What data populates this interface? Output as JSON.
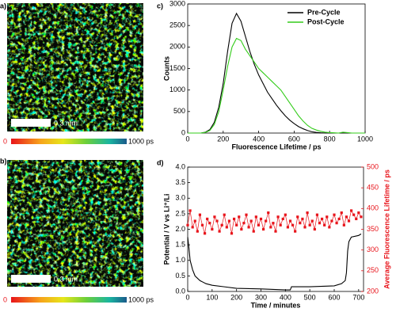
{
  "panels": {
    "a": {
      "label": "a)",
      "scale_bar": "0.3 mm",
      "colorbar": [
        "0",
        "1000 ps"
      ]
    },
    "b": {
      "label": "b)",
      "scale_bar": "0.3 mm",
      "colorbar": [
        "0",
        "1000 ps"
      ]
    }
  },
  "chart_data": [
    {
      "type": "line",
      "label": "c)",
      "xlabel": "Fluorescence Lifetime / ps",
      "ylabel": "Counts",
      "x": [
        0,
        25,
        50,
        75,
        100,
        125,
        150,
        175,
        200,
        225,
        250,
        275,
        300,
        325,
        350,
        375,
        400,
        425,
        450,
        475,
        500,
        525,
        550,
        575,
        600,
        625,
        650,
        675,
        700,
        725,
        750,
        775,
        800,
        825,
        850,
        875,
        900,
        925,
        950,
        975,
        1000
      ],
      "series": [
        {
          "name": "Pre-Cycle",
          "color": "#000000",
          "values": [
            0,
            0,
            0,
            0,
            20,
            80,
            250,
            600,
            1150,
            1900,
            2550,
            2780,
            2600,
            2250,
            1900,
            1600,
            1350,
            1150,
            950,
            800,
            650,
            520,
            400,
            300,
            220,
            150,
            100,
            60,
            30,
            15,
            5,
            0,
            0,
            0,
            0,
            0,
            0,
            0,
            0,
            0,
            0
          ]
        },
        {
          "name": "Post-Cycle",
          "color": "#33cc1a",
          "values": [
            0,
            0,
            0,
            0,
            15,
            60,
            200,
            500,
            1000,
            1550,
            2000,
            2200,
            2150,
            1950,
            1800,
            1650,
            1500,
            1400,
            1300,
            1200,
            1100,
            1000,
            850,
            700,
            550,
            400,
            280,
            180,
            110,
            70,
            40,
            20,
            10,
            5,
            0,
            20,
            10,
            0,
            0,
            0,
            0
          ]
        }
      ],
      "xlim": [
        0,
        1000
      ],
      "xticks": [
        0,
        200,
        400,
        600,
        800,
        1000
      ],
      "ylim": [
        0,
        3000
      ],
      "yticks": [
        0,
        500,
        1000,
        1500,
        2000,
        2500,
        3000
      ],
      "legend": "upper-right"
    },
    {
      "type": "line",
      "label": "d)",
      "xlabel": "Time / minutes",
      "ylabel": "Potential / V vs Li⁺/Li",
      "y2label": "Average Fluorescence Lifetime / ps",
      "y2color": "#e8141b",
      "series": [
        {
          "color": "#000000",
          "x": [
            0,
            5,
            10,
            20,
            30,
            50,
            75,
            100,
            150,
            200,
            300,
            400,
            420,
            425,
            500,
            600,
            630,
            645,
            650,
            655,
            660,
            670,
            700,
            710
          ],
          "values": [
            1.75,
            1.4,
            1.0,
            0.7,
            0.5,
            0.35,
            0.25,
            0.2,
            0.15,
            0.1,
            0.08,
            0.05,
            0.05,
            0.15,
            0.15,
            0.18,
            0.25,
            0.35,
            0.6,
            1.3,
            1.6,
            1.75,
            1.8,
            1.85
          ]
        },
        {
          "color": "#e8141b",
          "axis": "y2",
          "marker": "square",
          "x": [
            0,
            10,
            20,
            30,
            40,
            50,
            60,
            70,
            80,
            90,
            100,
            110,
            120,
            130,
            140,
            150,
            160,
            170,
            180,
            190,
            200,
            210,
            220,
            230,
            240,
            250,
            260,
            270,
            280,
            290,
            300,
            310,
            320,
            330,
            340,
            350,
            360,
            370,
            380,
            390,
            400,
            410,
            420,
            430,
            440,
            450,
            460,
            470,
            480,
            490,
            500,
            510,
            520,
            530,
            540,
            550,
            560,
            570,
            580,
            590,
            600,
            610,
            620,
            630,
            640,
            650,
            660,
            670,
            680,
            690,
            700,
            710
          ],
          "values": [
            360,
            395,
            355,
            370,
            345,
            385,
            360,
            340,
            375,
            365,
            350,
            380,
            370,
            345,
            360,
            385,
            355,
            370,
            340,
            375,
            360,
            380,
            350,
            365,
            385,
            355,
            370,
            345,
            380,
            360,
            375,
            350,
            370,
            390,
            355,
            365,
            345,
            380,
            360,
            375,
            385,
            355,
            370,
            360,
            345,
            380,
            365,
            375,
            355,
            390,
            360,
            370,
            350,
            385,
            365,
            375,
            360,
            380,
            355,
            370,
            385,
            365,
            375,
            390,
            360,
            380,
            370,
            395,
            385,
            375,
            390,
            380
          ]
        }
      ],
      "xlim": [
        0,
        720
      ],
      "xticks": [
        0,
        100,
        200,
        300,
        400,
        500,
        600,
        700
      ],
      "ylim": [
        0,
        4.0
      ],
      "yticks": [
        {
          "value": 0,
          "label": "0.0"
        },
        0.5,
        {
          "value": 1,
          "label": "1.0"
        },
        1.5,
        {
          "value": 2,
          "label": "2.0"
        },
        2.5,
        {
          "value": 3,
          "label": "3.0"
        },
        3.5,
        {
          "value": 4,
          "label": "4.0"
        }
      ],
      "y2lim": [
        200,
        500
      ],
      "y2ticks": [
        200,
        250,
        300,
        350,
        400,
        450,
        500
      ]
    }
  ]
}
